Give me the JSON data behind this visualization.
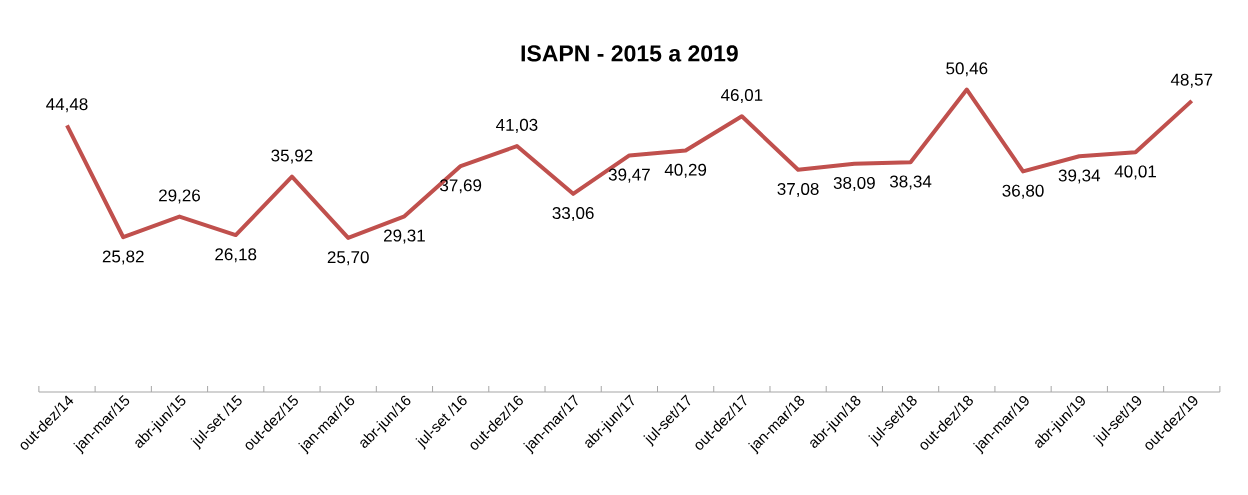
{
  "chart_data": {
    "type": "line",
    "title": "ISAPN - 2015 a 2019",
    "categories": [
      "out-dez/14",
      "jan-mar/15",
      "abr-jun/15",
      "jul-set /15",
      "out-dez/15",
      "jan-mar/16",
      "abr-jun/16",
      "jul-set /16",
      "out-dez/16",
      "jan-mar/17",
      "abr-jun/17",
      "jul-set/17",
      "out-dez/17",
      "jan-mar/18",
      "abr-jun/18",
      "jul-set/18",
      "out-dez/18",
      "jan-mar/19",
      "abr-jun/19",
      "jul-set/19",
      "out-dez/19"
    ],
    "values": [
      44.48,
      25.82,
      29.26,
      26.18,
      35.92,
      25.7,
      29.31,
      37.69,
      41.03,
      33.06,
      39.47,
      40.29,
      46.01,
      37.08,
      38.09,
      38.34,
      50.46,
      36.8,
      39.34,
      40.01,
      48.57
    ],
    "value_labels": [
      "44,48",
      "25,82",
      "29,26",
      "26,18",
      "35,92",
      "25,70",
      "29,31",
      "37,69",
      "41,03",
      "33,06",
      "39,47",
      "40,29",
      "46,01",
      "37,08",
      "38,09",
      "38,34",
      "50,46",
      "36,80",
      "39,34",
      "40,01",
      "48,57"
    ],
    "color": "#c0504d"
  }
}
